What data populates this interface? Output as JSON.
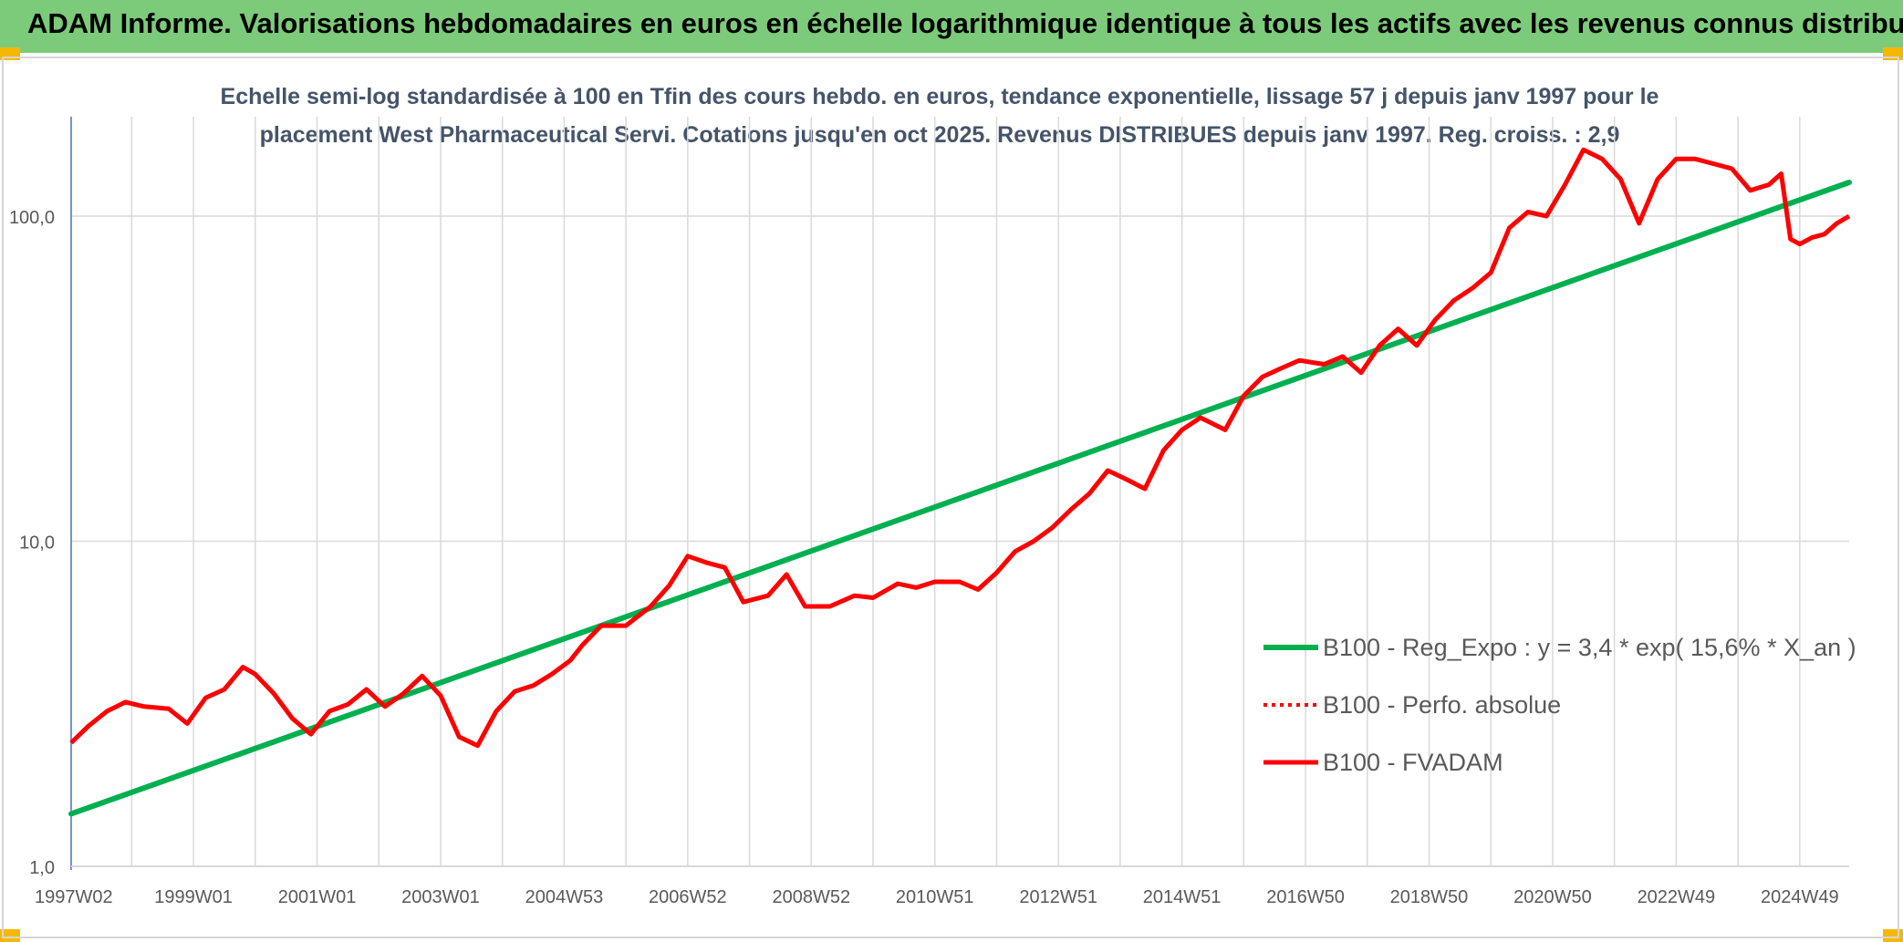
{
  "banner": {
    "title": "ADAM Informe. Valorisations hebdomadaires en euros en échelle logarithmique identique à tous les actifs avec les revenus connus distribués"
  },
  "colors": {
    "banner_bg": "#7ccb7a",
    "title_text": "#44546a",
    "regression": "#00b050",
    "fvadam": "#ff0000",
    "perfo": "#ff0000",
    "grid": "#d9d9d9",
    "y_axis": "#4472c4",
    "corner_marks": "#f5b800"
  },
  "chart_data": {
    "type": "line",
    "title_line1": "Echelle semi-log standardisée à 100 en Tfin des cours hebdo. en euros, tendance exponentielle, lissage 57 j depuis janv 1997 pour le",
    "title_line2": "placement West Pharmaceutical Servi. Cotations jusqu'en oct 2025. Revenus DISTRIBUES depuis janv 1997. Reg. croiss. : 2,9",
    "y_scale": "log",
    "ylim": [
      1,
      180
    ],
    "y_ticks": [
      {
        "value": 1,
        "label": "1,0"
      },
      {
        "value": 10,
        "label": "10,0"
      },
      {
        "value": 100,
        "label": "100,0"
      }
    ],
    "xlim": [
      1997.02,
      2025.8
    ],
    "x_ticks": [
      {
        "value": 1997.02,
        "label": "1997W02"
      },
      {
        "value": 1999.0,
        "label": "1999W01"
      },
      {
        "value": 2001.0,
        "label": "2001W01"
      },
      {
        "value": 2003.0,
        "label": "2003W01"
      },
      {
        "value": 2005.0,
        "label": "2004W53"
      },
      {
        "value": 2007.0,
        "label": "2006W52"
      },
      {
        "value": 2009.0,
        "label": "2008W52"
      },
      {
        "value": 2011.0,
        "label": "2010W51"
      },
      {
        "value": 2013.0,
        "label": "2012W51"
      },
      {
        "value": 2015.0,
        "label": "2014W51"
      },
      {
        "value": 2017.0,
        "label": "2016W50"
      },
      {
        "value": 2019.0,
        "label": "2018W50"
      },
      {
        "value": 2021.0,
        "label": "2020W50"
      },
      {
        "value": 2023.0,
        "label": "2022W49"
      },
      {
        "value": 2025.0,
        "label": "2024W49"
      }
    ],
    "minor_gridlines": [
      1998.0,
      2000.0,
      2002.0,
      2004.0,
      2006.0,
      2008.0,
      2010.0,
      2012.0,
      2014.0,
      2016.0,
      2018.0,
      2020.0,
      2022.0,
      2024.0
    ],
    "grid": true,
    "legend_position": "right",
    "series": [
      {
        "name": "B100 - Reg_Expo : y = 3,4 * exp( 15,6% *  X_an )",
        "style": "solid-thick",
        "x": [
          1997.02,
          2025.8
        ],
        "y": [
          1.45,
          127
        ]
      },
      {
        "name": "B100 - Perfo. absolue",
        "style": "dotted",
        "x": [],
        "y": []
      },
      {
        "name": "B100 - FVADAM",
        "style": "solid",
        "x": [
          1997.02,
          1997.3,
          1997.6,
          1997.9,
          1998.2,
          1998.6,
          1998.9,
          1999.2,
          1999.5,
          1999.8,
          2000.0,
          2000.3,
          2000.6,
          2000.9,
          2001.2,
          2001.5,
          2001.8,
          2002.1,
          2002.4,
          2002.7,
          2003.0,
          2003.3,
          2003.6,
          2003.9,
          2004.2,
          2004.5,
          2004.8,
          2005.1,
          2005.3,
          2005.6,
          2006.0,
          2006.4,
          2006.7,
          2007.0,
          2007.3,
          2007.6,
          2007.9,
          2008.3,
          2008.6,
          2008.9,
          2009.3,
          2009.7,
          2010.0,
          2010.4,
          2010.7,
          2011.0,
          2011.4,
          2011.7,
          2012.0,
          2012.3,
          2012.6,
          2012.9,
          2013.2,
          2013.5,
          2013.8,
          2014.1,
          2014.4,
          2014.7,
          2015.0,
          2015.3,
          2015.7,
          2016.0,
          2016.3,
          2016.6,
          2016.9,
          2017.3,
          2017.6,
          2017.9,
          2018.2,
          2018.5,
          2018.8,
          2019.1,
          2019.4,
          2019.7,
          2020.0,
          2020.3,
          2020.6,
          2020.9,
          2021.2,
          2021.5,
          2021.8,
          2022.1,
          2022.4,
          2022.7,
          2023.0,
          2023.3,
          2023.6,
          2023.9,
          2024.2,
          2024.5,
          2024.7,
          2024.85,
          2025.0,
          2025.2,
          2025.4,
          2025.6,
          2025.8
        ],
        "y": [
          2.4,
          2.7,
          3.0,
          3.2,
          3.1,
          3.05,
          2.75,
          3.3,
          3.5,
          4.1,
          3.9,
          3.4,
          2.85,
          2.55,
          3.0,
          3.15,
          3.5,
          3.1,
          3.4,
          3.85,
          3.35,
          2.5,
          2.35,
          3.0,
          3.45,
          3.6,
          3.9,
          4.3,
          4.8,
          5.5,
          5.5,
          6.3,
          7.3,
          9.0,
          8.6,
          8.3,
          6.5,
          6.8,
          7.9,
          6.3,
          6.3,
          6.8,
          6.7,
          7.4,
          7.2,
          7.5,
          7.5,
          7.1,
          8.0,
          9.3,
          10.0,
          11.0,
          12.5,
          14.0,
          16.5,
          15.5,
          14.5,
          19.0,
          22.0,
          24.0,
          22.0,
          28.0,
          32.0,
          34.0,
          36.0,
          35.0,
          37.0,
          33.0,
          40.0,
          45.0,
          40.0,
          48.0,
          55.0,
          60.0,
          67.0,
          92.0,
          103.0,
          100.0,
          125.0,
          160.0,
          150.0,
          130.0,
          95.0,
          130.0,
          150.0,
          150.0,
          145.0,
          140.0,
          120.0,
          125.0,
          135.0,
          85.0,
          82.0,
          86.0,
          88.0,
          95.0,
          100.0
        ]
      }
    ]
  }
}
